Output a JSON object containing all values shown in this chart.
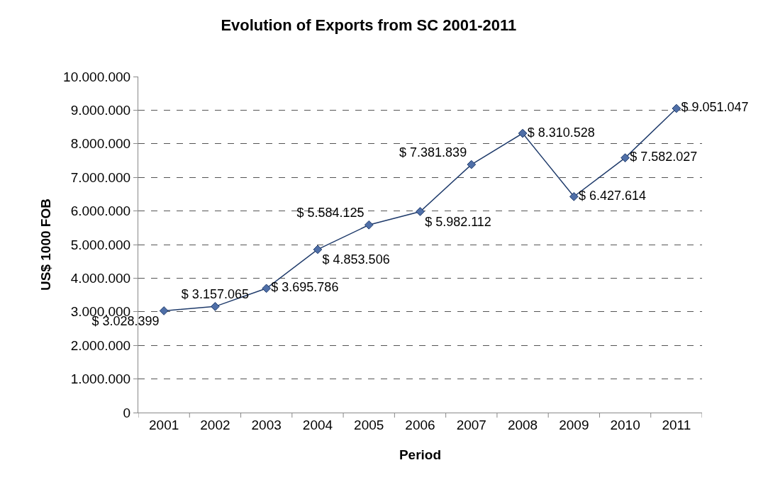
{
  "chart_data": {
    "type": "line",
    "title": "Evolution of Exports from SC 2001-2011",
    "xlabel": "Period",
    "ylabel": "US$ 1000 FOB",
    "categories": [
      "2001",
      "2002",
      "2003",
      "2004",
      "2005",
      "2006",
      "2007",
      "2008",
      "2009",
      "2010",
      "2011"
    ],
    "series": [
      {
        "color": "#1f3b6b",
        "values": [
          3028399,
          3157065,
          3695786,
          4853506,
          5584125,
          5982112,
          7381839,
          8310528,
          6427614,
          7582027,
          9051047
        ],
        "value_labels": [
          "$ 3.028.399",
          "$ 3.157.065",
          "$ 3.695.786",
          "$ 4.853.506",
          "$ 5.584.125",
          "$ 5.982.112",
          "$ 7.381.839",
          "$ 8.310.528",
          "$ 6.427.614",
          "$ 7.582.027",
          "$ 9.051.047"
        ]
      }
    ],
    "ylim": [
      0,
      10000000
    ],
    "yticks": [
      0,
      {
        "value": 1000000,
        "label": "1.000.000"
      },
      {
        "value": 2000000,
        "label": "2.000.000"
      },
      {
        "value": 3000000,
        "label": "3.000.000"
      },
      {
        "value": 4000000,
        "label": "4.000.000"
      },
      {
        "value": 5000000,
        "label": "5.000.000"
      },
      {
        "value": 6000000,
        "label": "6.000.000"
      },
      {
        "value": 7000000,
        "label": "7.000.000"
      },
      {
        "value": 8000000,
        "label": "8.000.000"
      },
      {
        "value": 9000000,
        "label": "9.000.000"
      },
      {
        "value": 10000000,
        "label": "10.000.000"
      }
    ],
    "grid": "y",
    "legend": false,
    "marker": "diamond",
    "line_style": "solid"
  }
}
